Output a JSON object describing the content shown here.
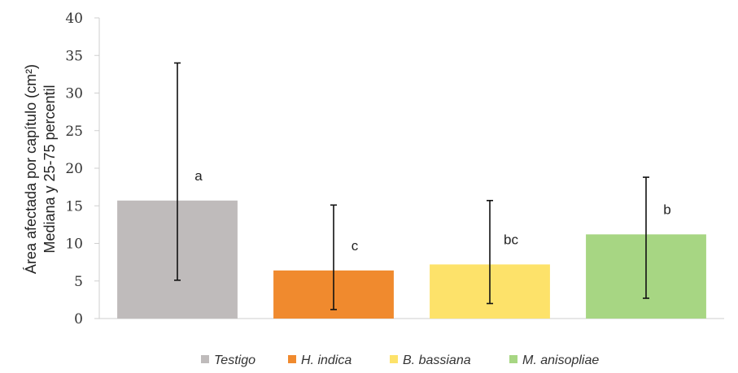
{
  "chart_data": {
    "type": "bar",
    "ylabel_line1": "Área afectada por capítulo (cm²)",
    "ylabel_line2": "Mediana y 25-75 percentil",
    "ylim": [
      0,
      40
    ],
    "yticks": [
      0,
      5,
      10,
      15,
      20,
      25,
      30,
      35,
      40
    ],
    "grid": false,
    "legend_position": "bottom",
    "categories": [
      "Testigo",
      "H. indica",
      "B. bassiana",
      "M. anisopliae"
    ],
    "values": [
      15.7,
      6.4,
      7.2,
      11.2
    ],
    "error_low": [
      5.1,
      1.2,
      2.0,
      2.7
    ],
    "error_high": [
      34.0,
      15.1,
      15.7,
      18.8
    ],
    "significance_labels": [
      "a",
      "c",
      "bc",
      "b"
    ],
    "colors": [
      "#bfbbbb",
      "#f08a2e",
      "#fde26a",
      "#a7d683"
    ]
  }
}
